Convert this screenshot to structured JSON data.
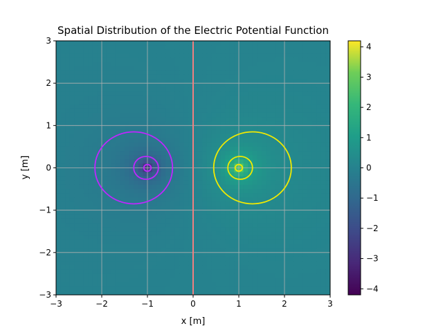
{
  "chart_data": {
    "type": "heatmap",
    "title": "Spatial Distribution of the Electric Potential Function",
    "xlabel": "x [m]",
    "ylabel": "y [m]",
    "xlim": [
      -3,
      3
    ],
    "ylim": [
      -3,
      3
    ],
    "xticks": [
      -3,
      -2,
      -1,
      0,
      1,
      2,
      3
    ],
    "yticks": [
      -3,
      -2,
      -1,
      0,
      1,
      2,
      3
    ],
    "xtick_labels": [
      "−3",
      "−2",
      "−1",
      "0",
      "1",
      "2",
      "3"
    ],
    "ytick_labels": [
      "−3",
      "−2",
      "−1",
      "0",
      "1",
      "2",
      "3"
    ],
    "grid": true,
    "colormap": "viridis",
    "colorbar": {
      "range": [
        -4.2,
        4.2
      ],
      "ticks": [
        -4,
        -3,
        -2,
        -1,
        0,
        1,
        2,
        3,
        4
      ],
      "tick_labels": [
        "−4",
        "−3",
        "−2",
        "−1",
        "0",
        "1",
        "2",
        "3",
        "4"
      ]
    },
    "charges": [
      {
        "x": -1,
        "y": 0,
        "sign": "negative"
      },
      {
        "x": 1,
        "y": 0,
        "sign": "positive"
      }
    ],
    "equipotential_contours": [
      {
        "center_x": -1.3,
        "center_y": 0,
        "radius": 0.85,
        "color": "#c026ff"
      },
      {
        "center_x": -1.03,
        "center_y": 0,
        "radius": 0.27,
        "color": "#c026ff"
      },
      {
        "center_x": -1.0,
        "center_y": 0,
        "radius": 0.08,
        "color": "#c026ff"
      },
      {
        "center_x": 1.3,
        "center_y": 0,
        "radius": 0.85,
        "color": "#f2ea00"
      },
      {
        "center_x": 1.03,
        "center_y": 0,
        "radius": 0.27,
        "color": "#f2ea00"
      },
      {
        "center_x": 1.0,
        "center_y": 0,
        "radius": 0.08,
        "color": "#f2ea00"
      }
    ],
    "vertical_line": {
      "x": 0,
      "color": "#f08080"
    }
  }
}
